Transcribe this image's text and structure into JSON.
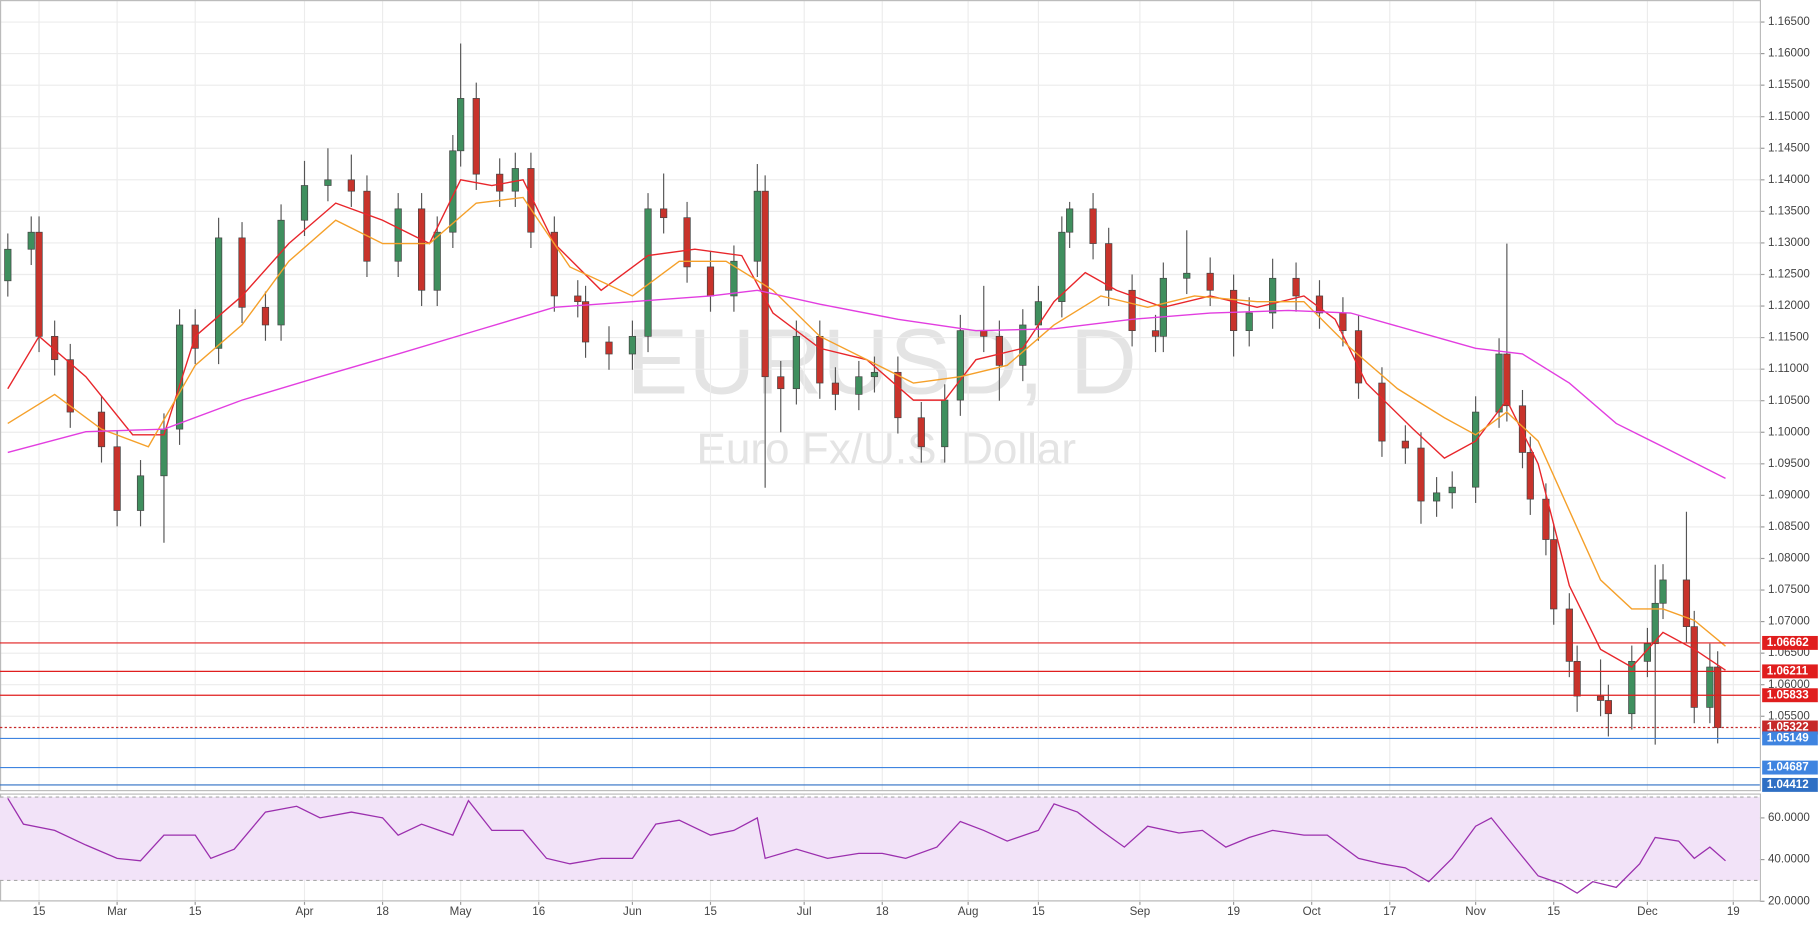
{
  "chart_data": [
    {
      "type": "candlestick",
      "watermark_title": "EURUSD, D",
      "watermark_subtitle": "Euro Fx/U.S. Dollar",
      "up_color": "#3f8f5e",
      "down_color": "#c8332b",
      "x": [
        0,
        3,
        4,
        6,
        8,
        12,
        14,
        17,
        20,
        22,
        24,
        27,
        30,
        33,
        35,
        38,
        41,
        44,
        46,
        50,
        53,
        55,
        57,
        58,
        60,
        63,
        65,
        67,
        70,
        73,
        74,
        77,
        80,
        82,
        84,
        87,
        90,
        93,
        96,
        97,
        99,
        101,
        104,
        106,
        109,
        111,
        114,
        117,
        120,
        122,
        125,
        127,
        130,
        132,
        135,
        136,
        139,
        141,
        144,
        147,
        148,
        151,
        154,
        157,
        159,
        162,
        165,
        168,
        171,
        173,
        176,
        179,
        181,
        183,
        185,
        188,
        191,
        192,
        194,
        195,
        197,
        198,
        200,
        201,
        204,
        205,
        208,
        210,
        211,
        212,
        215,
        216,
        218,
        219
      ],
      "open": [
        1.124,
        1.129,
        1.1317,
        1.1152,
        1.1115,
        1.1032,
        1.0977,
        1.0876,
        1.0931,
        1.1005,
        1.117,
        1.1133,
        1.1308,
        1.1198,
        1.117,
        1.1336,
        1.1391,
        1.14,
        1.1382,
        1.1271,
        1.1354,
        1.1225,
        1.1317,
        1.1446,
        1.1529,
        1.1409,
        1.1382,
        1.1418,
        1.1317,
        1.1216,
        1.1207,
        1.1143,
        1.1124,
        1.1152,
        1.1354,
        1.134,
        1.1262,
        1.1216,
        1.1271,
        1.1382,
        1.1088,
        1.1069,
        1.1152,
        1.1078,
        1.106,
        1.1088,
        1.1095,
        1.1023,
        1.0977,
        1.1051,
        1.1161,
        1.1152,
        1.1106,
        1.117,
        1.1207,
        1.1317,
        1.1354,
        1.1299,
        1.1225,
        1.1161,
        1.1152,
        1.1244,
        1.1252,
        1.1225,
        1.1161,
        1.1189,
        1.1244,
        1.1216,
        1.1189,
        1.1161,
        1.1078,
        1.0986,
        1.0975,
        1.0891,
        1.0904,
        1.0913,
        1.1032,
        1.1124,
        1.1042,
        1.0968,
        1.0894,
        1.083,
        1.072,
        1.0637,
        1.0582,
        1.0575,
        1.0554,
        1.0637,
        1.0665,
        1.0729,
        1.0766,
        1.0692,
        1.0564,
        1.0628
      ],
      "high": [
        1.1315,
        1.1342,
        1.1342,
        1.1177,
        1.114,
        1.1057,
        1.1002,
        1.0956,
        1.103,
        1.1195,
        1.1195,
        1.134,
        1.1333,
        1.1223,
        1.1361,
        1.143,
        1.145,
        1.144,
        1.1407,
        1.1379,
        1.1379,
        1.1342,
        1.1471,
        1.1616,
        1.1554,
        1.1434,
        1.1443,
        1.1443,
        1.1342,
        1.1241,
        1.1232,
        1.1168,
        1.1177,
        1.1379,
        1.141,
        1.1365,
        1.1287,
        1.1296,
        1.1425,
        1.1407,
        1.1113,
        1.1177,
        1.1177,
        1.1103,
        1.1113,
        1.112,
        1.112,
        1.1048,
        1.1076,
        1.1186,
        1.1232,
        1.1177,
        1.1195,
        1.1232,
        1.1342,
        1.1365,
        1.1379,
        1.1324,
        1.125,
        1.1186,
        1.1269,
        1.132,
        1.1277,
        1.125,
        1.1214,
        1.1275,
        1.1269,
        1.1241,
        1.1214,
        1.1186,
        1.1103,
        1.1011,
        1.1,
        1.0929,
        1.0938,
        1.1057,
        1.1149,
        1.1299,
        1.1067,
        1.0993,
        1.0919,
        1.0855,
        1.0745,
        1.0662,
        1.064,
        1.06,
        1.0662,
        1.069,
        1.079,
        1.0791,
        1.0874,
        1.0717,
        1.0665,
        1.0653
      ],
      "low": [
        1.1215,
        1.1265,
        1.1127,
        1.109,
        1.1007,
        1.0952,
        1.0851,
        1.0851,
        1.0825,
        1.098,
        1.1108,
        1.1108,
        1.1173,
        1.1145,
        1.1145,
        1.1311,
        1.1366,
        1.1357,
        1.1246,
        1.1246,
        1.12,
        1.12,
        1.1292,
        1.1421,
        1.1384,
        1.1357,
        1.1357,
        1.1292,
        1.1191,
        1.1182,
        1.1118,
        1.1099,
        1.1099,
        1.1127,
        1.1315,
        1.1237,
        1.1191,
        1.1191,
        1.1246,
        1.0912,
        1.1,
        1.1044,
        1.1053,
        1.1035,
        1.1035,
        1.1063,
        1.0998,
        1.0952,
        1.0952,
        1.1026,
        1.1127,
        1.105,
        1.1081,
        1.1145,
        1.1182,
        1.1292,
        1.1274,
        1.12,
        1.1136,
        1.1127,
        1.1127,
        1.1219,
        1.12,
        1.112,
        1.1136,
        1.1164,
        1.1191,
        1.1164,
        1.1136,
        1.1053,
        1.0961,
        1.095,
        1.0855,
        1.0866,
        1.0879,
        1.0888,
        1.1007,
        1.1017,
        1.0943,
        1.0869,
        1.0805,
        1.0695,
        1.0612,
        1.0557,
        1.055,
        1.0518,
        1.0529,
        1.0612,
        1.0505,
        1.0704,
        1.0667,
        1.0539,
        1.0539,
        1.0507
      ],
      "close": [
        1.129,
        1.1317,
        1.1152,
        1.1115,
        1.1032,
        1.0977,
        1.0876,
        1.0931,
        1.1005,
        1.117,
        1.1133,
        1.1308,
        1.1198,
        1.117,
        1.1336,
        1.1391,
        1.14,
        1.1382,
        1.1271,
        1.1354,
        1.1225,
        1.1317,
        1.1446,
        1.1529,
        1.1409,
        1.1382,
        1.1418,
        1.1317,
        1.1216,
        1.1207,
        1.1143,
        1.1124,
        1.1152,
        1.1354,
        1.134,
        1.1262,
        1.1216,
        1.1271,
        1.1382,
        1.1088,
        1.1069,
        1.1152,
        1.1078,
        1.106,
        1.1088,
        1.1095,
        1.1023,
        1.0977,
        1.1051,
        1.1161,
        1.1152,
        1.1106,
        1.117,
        1.1207,
        1.1317,
        1.1354,
        1.1299,
        1.1225,
        1.1161,
        1.1152,
        1.1244,
        1.1252,
        1.1225,
        1.1161,
        1.1189,
        1.1244,
        1.1216,
        1.1189,
        1.1161,
        1.1078,
        1.0986,
        1.0975,
        1.0891,
        1.0904,
        1.0913,
        1.1032,
        1.1124,
        1.1042,
        1.0968,
        1.0894,
        1.083,
        1.072,
        1.0637,
        1.0582,
        1.0575,
        1.0554,
        1.0637,
        1.0665,
        1.0729,
        1.0766,
        1.0692,
        1.0564,
        1.0628,
        1.0532
      ],
      "series": [
        {
          "color": "#e8262b",
          "x": [
            0,
            4,
            10,
            16,
            20,
            24,
            30,
            36,
            42,
            48,
            54,
            58,
            62,
            66,
            70,
            76,
            82,
            88,
            94,
            98,
            104,
            110,
            116,
            120,
            124,
            130,
            134,
            138,
            142,
            148,
            154,
            160,
            166,
            170,
            174,
            180,
            184,
            188,
            192,
            196,
            200,
            204,
            208,
            212,
            216,
            220
          ],
          "values": [
            1.1069,
            1.1152,
            1.1088,
            1.0996,
            1.0996,
            1.1152,
            1.1216,
            1.1299,
            1.1363,
            1.1336,
            1.1299,
            1.14,
            1.1391,
            1.14,
            1.1299,
            1.1225,
            1.128,
            1.129,
            1.128,
            1.1189,
            1.1133,
            1.1115,
            1.1051,
            1.1051,
            1.1115,
            1.1133,
            1.1207,
            1.1253,
            1.1225,
            1.1198,
            1.1216,
            1.1198,
            1.1216,
            1.1179,
            1.1078,
            1.1005,
            1.0959,
            1.0986,
            1.1051,
            1.095,
            1.0757,
            1.0656,
            1.0628,
            1.0683,
            1.0656,
            1.0623
          ]
        },
        {
          "color": "#f5a02a",
          "x": [
            0,
            6,
            12,
            18,
            24,
            30,
            36,
            42,
            48,
            54,
            60,
            66,
            72,
            80,
            86,
            92,
            98,
            104,
            110,
            116,
            122,
            128,
            134,
            140,
            146,
            152,
            160,
            166,
            172,
            178,
            184,
            188,
            192,
            196,
            200,
            204,
            208,
            212,
            216,
            220
          ],
          "values": [
            1.1014,
            1.106,
            1.1005,
            1.0977,
            1.1106,
            1.117,
            1.1271,
            1.1336,
            1.1299,
            1.1299,
            1.1363,
            1.1372,
            1.1262,
            1.1216,
            1.1271,
            1.1271,
            1.1225,
            1.1152,
            1.1115,
            1.1078,
            1.1088,
            1.1106,
            1.117,
            1.1216,
            1.1198,
            1.1216,
            1.1207,
            1.1207,
            1.1133,
            1.1069,
            1.1023,
            1.0996,
            1.1032,
            1.0986,
            1.0876,
            1.0766,
            1.072,
            1.072,
            1.0702,
            1.0661
          ]
        },
        {
          "color": "#e23ee0",
          "x": [
            0,
            10,
            20,
            30,
            40,
            50,
            60,
            70,
            80,
            90,
            96,
            104,
            114,
            124,
            134,
            144,
            154,
            164,
            172,
            180,
            188,
            194,
            200,
            206,
            212,
            220
          ],
          "values": [
            1.0968,
            1.1001,
            1.1005,
            1.1051,
            1.1088,
            1.1124,
            1.1161,
            1.1198,
            1.1207,
            1.1216,
            1.1225,
            1.1203,
            1.1179,
            1.1161,
            1.1164,
            1.1179,
            1.1189,
            1.1193,
            1.1189,
            1.1161,
            1.1133,
            1.1124,
            1.1078,
            1.1014,
            1.0977,
            1.0927
          ]
        }
      ],
      "levels": [
        1.06662,
        1.06211,
        1.05833,
        1.05322,
        1.05149,
        1.04687,
        1.04412
      ],
      "level_colors": [
        "#e01e1e",
        "#e01e1e",
        "#e01e1e",
        "#c62828",
        "#3f84e0",
        "#3f84e0",
        "#2f6fc4"
      ],
      "level_styles": [
        "solid",
        "solid",
        "solid",
        "dotted",
        "solid",
        "solid",
        "solid"
      ],
      "xlim": [
        -1,
        224.4
      ],
      "ylim": [
        1.04331,
        1.16849
      ],
      "yticks": [
        {
          "value": 1.165,
          "label": "1.16500"
        },
        {
          "value": 1.16,
          "label": "1.16000"
        },
        {
          "value": 1.155,
          "label": "1.15500"
        },
        {
          "value": 1.15,
          "label": "1.15000"
        },
        {
          "value": 1.145,
          "label": "1.14500"
        },
        {
          "value": 1.14,
          "label": "1.14000"
        },
        {
          "value": 1.135,
          "label": "1.13500"
        },
        {
          "value": 1.13,
          "label": "1.13000"
        },
        {
          "value": 1.125,
          "label": "1.12500"
        },
        {
          "value": 1.12,
          "label": "1.12000"
        },
        {
          "value": 1.115,
          "label": "1.11500"
        },
        {
          "value": 1.11,
          "label": "1.11000"
        },
        {
          "value": 1.105,
          "label": "1.10500"
        },
        {
          "value": 1.1,
          "label": "1.10000"
        },
        {
          "value": 1.095,
          "label": "1.09500"
        },
        {
          "value": 1.09,
          "label": "1.09000"
        },
        {
          "value": 1.085,
          "label": "1.08500"
        },
        {
          "value": 1.08,
          "label": "1.08000"
        },
        {
          "value": 1.075,
          "label": "1.07500"
        },
        {
          "value": 1.07,
          "label": "1.07000"
        },
        {
          "value": 1.065,
          "label": "1.06500"
        },
        {
          "value": 1.06,
          "label": "1.06000"
        },
        {
          "value": 1.055,
          "label": "1.05500"
        }
      ],
      "xticks": [
        {
          "value": 4,
          "label": "15"
        },
        {
          "value": 14,
          "label": "Mar"
        },
        {
          "value": 24,
          "label": "15"
        },
        {
          "value": 38,
          "label": "Apr"
        },
        {
          "value": 48,
          "label": "18"
        },
        {
          "value": 58,
          "label": "May"
        },
        {
          "value": 68,
          "label": "16"
        },
        {
          "value": 80,
          "label": "Jun"
        },
        {
          "value": 90,
          "label": "15"
        },
        {
          "value": 102,
          "label": "Jul"
        },
        {
          "value": 112,
          "label": "18"
        },
        {
          "value": 123,
          "label": "Aug"
        },
        {
          "value": 132,
          "label": "15"
        },
        {
          "value": 145,
          "label": "Sep"
        },
        {
          "value": 157,
          "label": "19"
        },
        {
          "value": 167,
          "label": "Oct"
        },
        {
          "value": 177,
          "label": "17"
        },
        {
          "value": 188,
          "label": "Nov"
        },
        {
          "value": 198,
          "label": "15"
        },
        {
          "value": 210,
          "label": "Dec"
        },
        {
          "value": 221,
          "label": "19"
        }
      ],
      "grid": true
    },
    {
      "type": "line",
      "color": "#9b2fae",
      "band_color": "#f2e3f8",
      "bands": [
        30,
        70
      ],
      "x": [
        0,
        2,
        6,
        10,
        14,
        17,
        20,
        24,
        26,
        29,
        33,
        37,
        40,
        44,
        48,
        50,
        53,
        57,
        59,
        62,
        66,
        69,
        72,
        76,
        80,
        83,
        86,
        90,
        93,
        96,
        97,
        101,
        105,
        109,
        112,
        115,
        119,
        122,
        125,
        128,
        132,
        134,
        137,
        140,
        143,
        146,
        150,
        153,
        156,
        159,
        162,
        166,
        169,
        173,
        176,
        179,
        182,
        185,
        188,
        190,
        193,
        196,
        199,
        201,
        203,
        206,
        209,
        211,
        214,
        216,
        218,
        220
      ],
      "values": [
        69.4,
        57,
        54,
        47,
        40.6,
        39.4,
        51.7,
        51.7,
        40.6,
        45,
        62.8,
        65.6,
        60,
        62.8,
        60,
        51.7,
        57,
        51.7,
        68.3,
        54,
        54,
        40.6,
        38,
        40.6,
        40.6,
        57,
        58.9,
        51.7,
        54,
        60,
        40.6,
        45,
        40.6,
        43,
        43,
        40.6,
        46,
        58.3,
        54,
        48.9,
        54,
        66.7,
        62.8,
        54,
        46,
        56,
        52.8,
        54,
        46,
        50.6,
        54,
        51.7,
        51.7,
        40.6,
        38,
        36,
        29.4,
        40.6,
        56,
        60,
        46,
        32.2,
        28.3,
        23.9,
        29.4,
        26.7,
        38,
        50.6,
        48.9,
        40.6,
        46,
        39.4
      ],
      "xlim": [
        -1,
        224.4
      ],
      "ylim": [
        20.5,
        71.7
      ],
      "yticks": [
        {
          "value": 60,
          "label": "60.0000"
        },
        {
          "value": 40,
          "label": "40.0000"
        },
        {
          "value": 20,
          "label": "20.0000"
        }
      ],
      "grid": true
    }
  ]
}
